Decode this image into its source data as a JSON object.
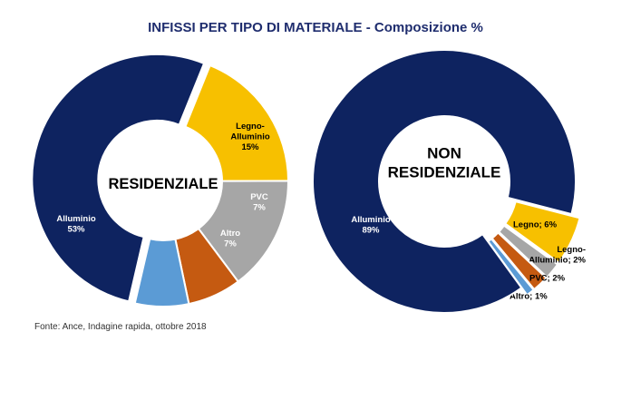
{
  "title": "INFISSI PER TIPO DI MATERIALE - Composizione %",
  "source": "Fonte: Ance, Indagine rapida, ottobre 2018",
  "colors": {
    "Alluminio": "#0e2360",
    "Legno": "#f7c000",
    "Legno-Alluminio": "#a6a6a6",
    "PVC": "#c55a11",
    "Altro": "#5b9bd5"
  },
  "chart_data": [
    {
      "type": "pie",
      "subtype": "donut",
      "center_label": [
        "RESIDENZIALE"
      ],
      "series": [
        {
          "name": "Legno",
          "value": 19,
          "label": [
            "Legno",
            "19%"
          ]
        },
        {
          "name": "Legno-Alluminio",
          "value": 15,
          "label": [
            "Legno-",
            "Alluminio",
            "15%"
          ]
        },
        {
          "name": "PVC",
          "value": 7,
          "label": [
            "PVC",
            "7%"
          ]
        },
        {
          "name": "Altro",
          "value": 7,
          "label": [
            "Altro",
            "7%"
          ]
        },
        {
          "name": "Alluminio",
          "value": 53,
          "label": [
            "Alluminio",
            "53%"
          ]
        }
      ]
    },
    {
      "type": "pie",
      "subtype": "donut",
      "center_label": [
        "NON",
        "RESIDENZIALE"
      ],
      "series": [
        {
          "name": "Legno",
          "value": 6,
          "label": [
            "Legno; 6%"
          ]
        },
        {
          "name": "Legno-Alluminio",
          "value": 2,
          "label": [
            "Legno-",
            "Alluminio;  2%"
          ]
        },
        {
          "name": "PVC",
          "value": 2,
          "label": [
            "PVC; 2%"
          ]
        },
        {
          "name": "Altro",
          "value": 1,
          "label": [
            "Altro; 1%"
          ]
        },
        {
          "name": "Alluminio",
          "value": 89,
          "label": [
            "Alluminio",
            "89%"
          ]
        }
      ]
    }
  ]
}
